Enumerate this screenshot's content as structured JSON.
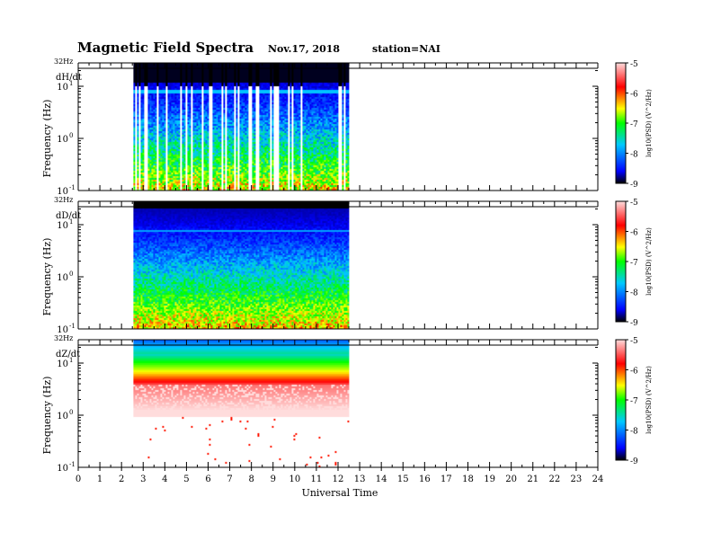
{
  "header": {
    "title": "Magnetic Field Spectra",
    "date": "Nov.17, 2018",
    "station": "station=NAI"
  },
  "chart_data": [
    {
      "type": "heatmap",
      "panel_label": "dH/dt",
      "top_label": "32Hz",
      "ylabel": "Frequency (Hz)",
      "y_tick_labels": [
        {
          "base": "10",
          "exp": "1",
          "value": 10
        },
        {
          "base": "10",
          "exp": "0",
          "value": 1
        },
        {
          "base": "10",
          "exp": "-1",
          "value": 0.1
        }
      ],
      "y_scale": "log",
      "ylim": [
        0.1,
        32
      ],
      "xlim": [
        0,
        24
      ],
      "data_start_hour": 2.55,
      "data_end_hour": 12.5,
      "gap_pattern": "many vertical data dropouts",
      "colorbar": {
        "label": "log10(PSD) (V^2/Hz)",
        "min": -9,
        "max": -5,
        "tick_labels": [
          "-5",
          "-6",
          "-7",
          "-8",
          "-9"
        ]
      }
    },
    {
      "type": "heatmap",
      "panel_label": "dD/dt",
      "top_label": "32Hz",
      "ylabel": "Frequency (Hz)",
      "y_tick_labels": [
        {
          "base": "10",
          "exp": "1",
          "value": 10
        },
        {
          "base": "10",
          "exp": "0",
          "value": 1
        },
        {
          "base": "10",
          "exp": "-1",
          "value": 0.1
        }
      ],
      "y_scale": "log",
      "ylim": [
        0.1,
        32
      ],
      "xlim": [
        0,
        24
      ],
      "data_start_hour": 2.55,
      "data_end_hour": 12.5,
      "colorbar": {
        "label": "log10(PSD) (V^2/Hz)",
        "min": -9,
        "max": -5,
        "tick_labels": [
          "-5",
          "-6",
          "-7",
          "-8",
          "-9"
        ]
      }
    },
    {
      "type": "heatmap",
      "panel_label": "dZ/dt",
      "top_label": "32Hz",
      "ylabel": "Frequency (Hz)",
      "y_tick_labels": [
        {
          "base": "10",
          "exp": "1",
          "value": 10
        },
        {
          "base": "10",
          "exp": "0",
          "value": 1
        },
        {
          "base": "10",
          "exp": "-1",
          "value": 0.1
        }
      ],
      "y_scale": "log",
      "ylim": [
        0.1,
        32
      ],
      "xlim": [
        0,
        24
      ],
      "data_start_hour": 2.55,
      "data_end_hour": 12.5,
      "colorbar": {
        "label": "log10(PSD) (V^2/Hz)",
        "min": -9,
        "max": -5,
        "tick_labels": [
          "-5",
          "-6",
          "-7",
          "-8",
          "-9"
        ]
      }
    }
  ],
  "x_axis": {
    "label": "Universal Time",
    "tick_labels": [
      "0",
      "1",
      "2",
      "3",
      "4",
      "5",
      "6",
      "7",
      "8",
      "9",
      "10",
      "11",
      "12",
      "13",
      "14",
      "15",
      "16",
      "17",
      "18",
      "19",
      "20",
      "21",
      "22",
      "23",
      "24"
    ]
  },
  "colormap": [
    "#000000",
    "#0000ff",
    "#00c8ff",
    "#00ff00",
    "#ffff00",
    "#ff0000",
    "#ffdcdc"
  ]
}
